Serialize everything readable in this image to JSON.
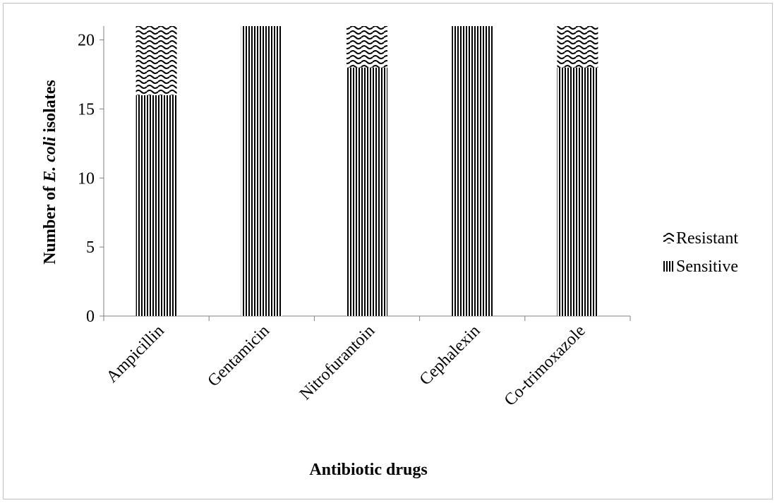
{
  "chart_data": {
    "type": "bar",
    "stacked": true,
    "categories": [
      "Ampicillin",
      "Gentamicin",
      "Nitrofurantoin",
      "Cephalexin",
      "Co-trimoxazole"
    ],
    "series": [
      {
        "name": "Sensitive",
        "values": [
          16,
          21,
          18,
          21,
          18
        ],
        "pattern": "vertical-stripes"
      },
      {
        "name": "Resistant",
        "values": [
          5,
          0,
          3,
          0,
          3
        ],
        "pattern": "wavy"
      }
    ],
    "xlabel": "Antibiotic drugs",
    "ylabel_prefix": "Number of ",
    "ylabel_italic": "E. coli",
    "ylabel_suffix": " isolates",
    "ylim": [
      0,
      21
    ],
    "yticks": [
      0,
      5,
      10,
      15,
      20
    ],
    "legend_position": "right",
    "legend_order": [
      "Resistant",
      "Sensitive"
    ],
    "grid": false,
    "colors": {
      "ink": "#000000",
      "paper": "#ffffff",
      "axis": "#808080"
    }
  }
}
